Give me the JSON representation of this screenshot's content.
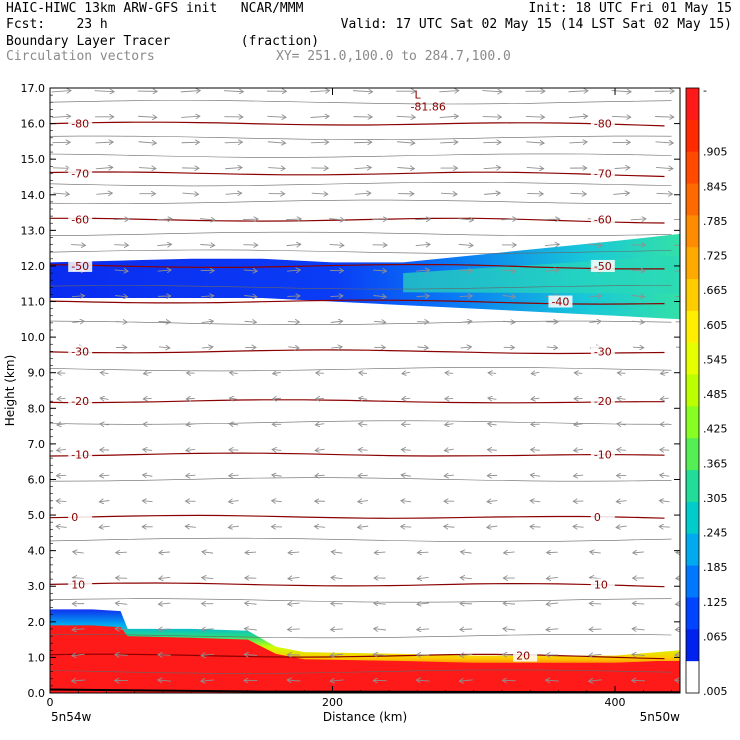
{
  "header": {
    "left1": "HAIC-HIWC 13km ARW-GFS init   NCAR/MMM",
    "left2": "Fcst:    23 h",
    "left3": "Boundary Layer Tracer         (fraction)",
    "left4": "Circulation vectors",
    "right1": "Init: 18 UTC Fri 01 May 15",
    "right2": "Valid: 17 UTC Sat 02 May 15 (14 LST Sat 02 May 15)",
    "xy": "XY= 251.0,100.0 to 284.7,100.0"
  },
  "chart_data": {
    "type": "heatmap",
    "xlabel": "Distance (km)",
    "ylabel": "Height (km)",
    "xlim": [
      0,
      446
    ],
    "ylim": [
      0,
      17
    ],
    "x_ticks": [
      "0",
      "200",
      "400"
    ],
    "y_ticks": [
      "0.0",
      "1.0",
      "2.0",
      "3.0",
      "4.0",
      "5.0",
      "6.0",
      "7.0",
      "8.0",
      "9.0",
      "10.0",
      "11.0",
      "12.0",
      "13.0",
      "14.0",
      "15.0",
      "16.0",
      "17.0"
    ],
    "x_left_label": "5n54w",
    "x_right_label": "5n50w",
    "low_marker": {
      "symbol": "L",
      "value": "-81.86",
      "x": 258,
      "y": 16.7
    },
    "colorbar": {
      "labels": [
        "-",
        ".905",
        ".845",
        ".785",
        ".725",
        ".665",
        ".605",
        ".545",
        ".485",
        ".425",
        ".365",
        ".305",
        ".245",
        ".185",
        ".125",
        ".065",
        ".005"
      ],
      "colors": [
        "#ff1a1a",
        "#ff2a00",
        "#ff4a00",
        "#ff6a00",
        "#ff8c00",
        "#ffaa00",
        "#ffcc00",
        "#ffee00",
        "#e6ff00",
        "#bbff00",
        "#88ff22",
        "#55ee55",
        "#22dd99",
        "#00cccc",
        "#00aaee",
        "#0077ff",
        "#0044ff",
        "#0022ee",
        "#ffffff"
      ]
    },
    "temperature_contours": [
      {
        "value": -80,
        "height": 16.0,
        "label_left": "-80",
        "label_right": "-80"
      },
      {
        "value": -70,
        "height": 14.6,
        "label_left": "-70",
        "label_right": "-70"
      },
      {
        "value": -60,
        "height": 13.3,
        "label_left": "-60",
        "label_right": "-60"
      },
      {
        "value": -50,
        "height": 12.0,
        "label_left": "-50",
        "label_right": "-50"
      },
      {
        "value": -40,
        "height": 11.0,
        "label_left": "",
        "label_right": "-40"
      },
      {
        "value": -30,
        "height": 9.6,
        "label_left": "-30",
        "label_right": "-30"
      },
      {
        "value": -20,
        "height": 8.2,
        "label_left": "-20",
        "label_right": "-20"
      },
      {
        "value": -10,
        "height": 6.7,
        "label_left": "-10",
        "label_right": "-10"
      },
      {
        "value": 0,
        "height": 4.95,
        "label_left": "0",
        "label_right": "0"
      },
      {
        "value": 10,
        "height": 3.05,
        "label_left": "10",
        "label_right": "10"
      },
      {
        "value": 20,
        "height": 1.05,
        "label_left": "",
        "label_right": "20"
      }
    ],
    "isentrope_heights": [
      16.6,
      15.6,
      15.1,
      14.3,
      13.8,
      12.9,
      12.4,
      11.4,
      10.4,
      9.1,
      7.6,
      6.0,
      4.3,
      2.6,
      1.6,
      0.6
    ],
    "upper_tracer_layer": {
      "x": [
        0,
        50,
        100,
        150,
        200,
        250,
        300,
        350,
        400,
        446
      ],
      "bottom": [
        11.1,
        11.1,
        11.1,
        11.1,
        11.0,
        10.9,
        10.8,
        10.7,
        10.6,
        10.5
      ],
      "top": [
        12.1,
        12.15,
        12.2,
        12.2,
        12.1,
        12.1,
        12.3,
        12.5,
        12.7,
        12.9
      ],
      "peak_fraction": [
        0.05,
        0.06,
        0.06,
        0.06,
        0.08,
        0.1,
        0.2,
        0.3,
        0.35,
        0.35
      ]
    },
    "boundary_layer": {
      "x": [
        0,
        30,
        50,
        55,
        100,
        140,
        160,
        180,
        250,
        300,
        330,
        400,
        430,
        446
      ],
      "top": [
        2.35,
        2.35,
        2.3,
        1.8,
        1.8,
        1.75,
        1.3,
        1.15,
        1.1,
        1.05,
        1.05,
        1.05,
        1.15,
        1.2
      ],
      "red_top": [
        1.9,
        1.9,
        1.85,
        1.6,
        1.55,
        1.5,
        1.1,
        0.95,
        0.9,
        0.85,
        0.85,
        0.85,
        0.9,
        0.9
      ]
    }
  }
}
